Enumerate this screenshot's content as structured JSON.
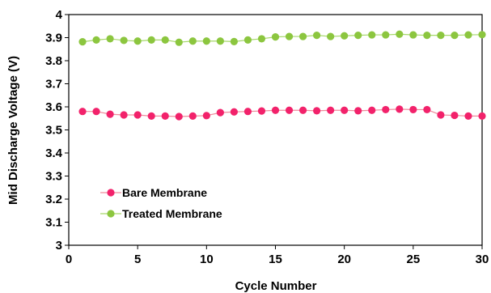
{
  "chart_data": {
    "type": "line",
    "title": "",
    "xlabel": "Cycle Number",
    "ylabel": "Mid Discharge Voltage (V)",
    "xlim": [
      0,
      30
    ],
    "ylim": [
      3,
      4
    ],
    "xticks": [
      0,
      5,
      10,
      15,
      20,
      25,
      30
    ],
    "yticks": [
      3,
      3.1,
      3.2,
      3.3,
      3.4,
      3.5,
      3.6,
      3.7,
      3.8,
      3.9,
      4
    ],
    "ytick_labels": [
      "3",
      "3.1",
      "3.2",
      "3.3",
      "3.4",
      "3.5",
      "3.6",
      "3.7",
      "3.8",
      "3.9",
      "4"
    ],
    "grid": false,
    "legend_position": "lower-left",
    "x": [
      1,
      2,
      3,
      4,
      5,
      6,
      7,
      8,
      9,
      10,
      11,
      12,
      13,
      14,
      15,
      16,
      17,
      18,
      19,
      20,
      21,
      22,
      23,
      24,
      25,
      26,
      27,
      28,
      29,
      30
    ],
    "series": [
      {
        "name": "Bare Membrane",
        "color": "#f2226b",
        "line_color": "#f08a9c",
        "values": [
          3.58,
          3.58,
          3.568,
          3.565,
          3.565,
          3.56,
          3.56,
          3.558,
          3.56,
          3.562,
          3.575,
          3.578,
          3.58,
          3.582,
          3.585,
          3.585,
          3.585,
          3.583,
          3.585,
          3.585,
          3.583,
          3.585,
          3.588,
          3.59,
          3.588,
          3.588,
          3.565,
          3.563,
          3.56,
          3.56
        ]
      },
      {
        "name": "Treated Membrane",
        "color": "#8cc63f",
        "line_color": "#a6d86a",
        "values": [
          3.882,
          3.89,
          3.895,
          3.888,
          3.885,
          3.89,
          3.89,
          3.88,
          3.885,
          3.885,
          3.885,
          3.883,
          3.89,
          3.895,
          3.903,
          3.905,
          3.905,
          3.91,
          3.905,
          3.908,
          3.91,
          3.912,
          3.912,
          3.915,
          3.912,
          3.91,
          3.91,
          3.91,
          3.912,
          3.913
        ]
      }
    ]
  }
}
